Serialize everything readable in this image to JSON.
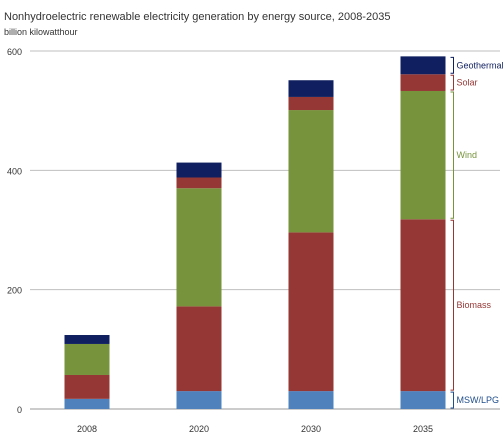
{
  "chart_data": {
    "type": "bar",
    "stacked": true,
    "title": "Nonhydroelectric renewable electricity generation by energy source, 2008-2035",
    "ylabel": "billion kilowatthour",
    "xlabel": "",
    "categories": [
      "2008",
      "2020",
      "2030",
      "2035"
    ],
    "ylim": [
      0,
      600
    ],
    "yticks": [
      "0",
      "200",
      "400",
      "600"
    ],
    "grid": true,
    "legend_position": "right (bracketed labels beside last bar)",
    "series": [
      {
        "name": "MSW/LPG",
        "color": "#4f81bd",
        "values": [
          17,
          30,
          30,
          30
        ]
      },
      {
        "name": "Biomass",
        "color": "#953735",
        "values": [
          40,
          142,
          266,
          288
        ]
      },
      {
        "name": "Wind",
        "color": "#77933c",
        "values": [
          52,
          198,
          205,
          215
        ]
      },
      {
        "name": "Solar",
        "color": "#953735",
        "values": [
          0,
          18,
          22,
          28
        ]
      },
      {
        "name": "Geothermal",
        "color": "#0f1f5f",
        "values": [
          15,
          25,
          28,
          30
        ]
      }
    ],
    "legend_label_colors": {
      "MSW/LPG": "#1f4e8c",
      "Biomass": "#953735",
      "Wind": "#77933c",
      "Solar": "#953735",
      "Geothermal": "#0f1f5f"
    }
  }
}
